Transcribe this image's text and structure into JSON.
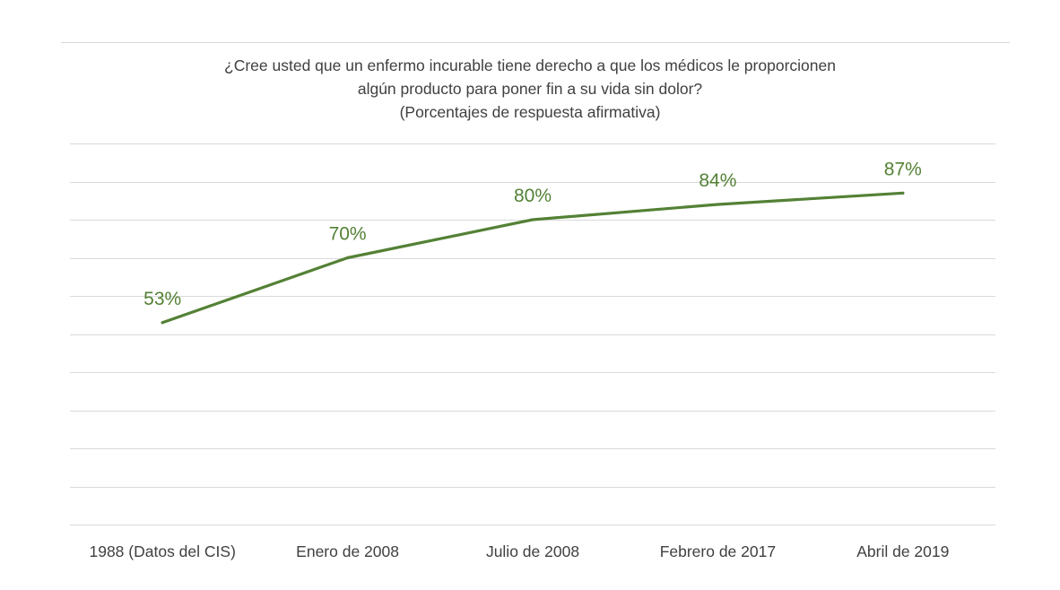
{
  "chart_data": {
    "type": "line",
    "title": "¿Cree usted que un enfermo incurable tiene derecho a que los médicos le proporcionen algún producto para poner fin a su vida sin dolor?",
    "title_lines": [
      "¿Cree usted que un enfermo incurable tiene derecho a que los médicos le proporcionen",
      "algún producto para poner fin a su vida sin dolor?"
    ],
    "subtitle": "(Porcentajes de respuesta afirmativa)",
    "categories": [
      "1988 (Datos del CIS)",
      "Enero de 2008",
      "Julio de 2008",
      "Febrero de 2017",
      "Abril de 2019"
    ],
    "series": [
      {
        "values": [
          53,
          70,
          80,
          84,
          87
        ],
        "data_labels": [
          "53%",
          "70%",
          "80%",
          "84%",
          "87%"
        ],
        "color": "#538135"
      }
    ],
    "ylim": [
      0,
      100
    ],
    "gridlines": true,
    "legend": false
  }
}
